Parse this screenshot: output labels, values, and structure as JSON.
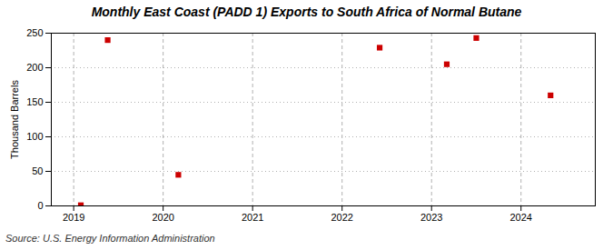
{
  "chart_data": {
    "type": "scatter",
    "title": "Monthly East Coast (PADD 1) Exports to South Africa of Normal Butane",
    "ylabel": "Thousand Barrels",
    "source": "Source: U.S. Energy Information Administration",
    "x": [
      2019.08,
      2019.38,
      2020.17,
      2022.42,
      2023.17,
      2023.5,
      2024.33
    ],
    "values": [
      1,
      240,
      45,
      229,
      205,
      243,
      160
    ],
    "color": "#cc0000",
    "marker": "square",
    "xlim": [
      2018.75,
      2024.83
    ],
    "xticks": [
      2019,
      2020,
      2021,
      2022,
      2023,
      2024
    ],
    "ylim": [
      0,
      250
    ],
    "yticks": [
      0,
      50,
      100,
      150,
      200,
      250
    ],
    "grid": true
  }
}
